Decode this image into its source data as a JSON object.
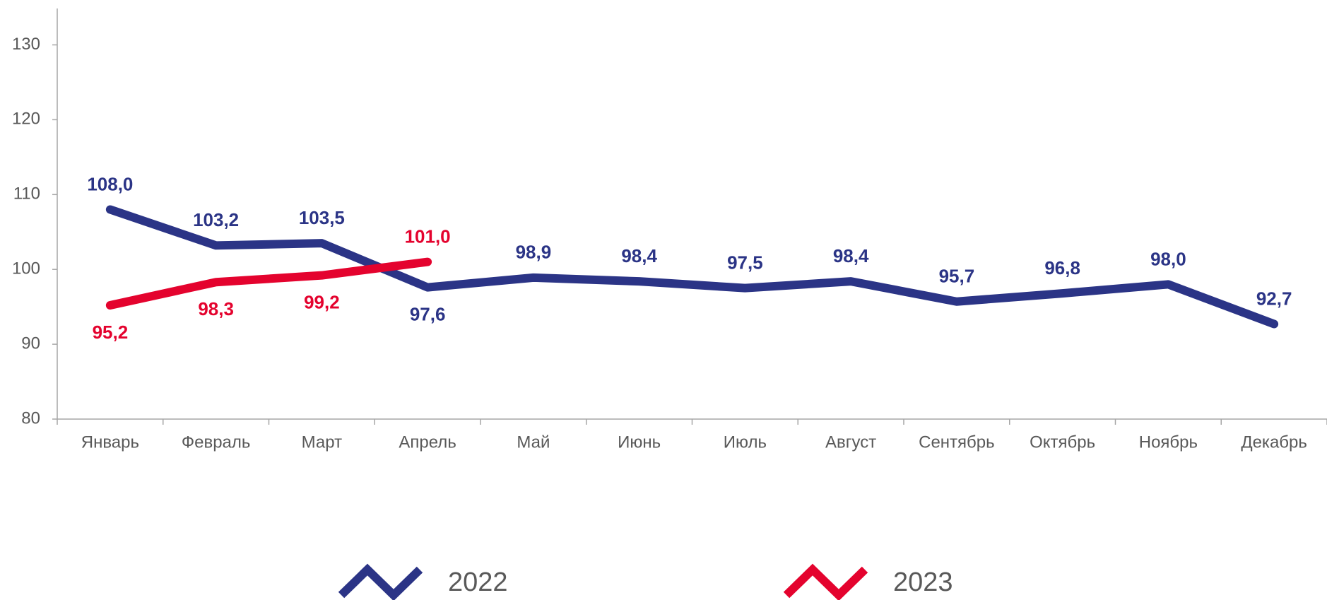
{
  "chart_data": {
    "type": "line",
    "categories": [
      "Январь",
      "Февраль",
      "Март",
      "Апрель",
      "Май",
      "Июнь",
      "Июль",
      "Август",
      "Сентябрь",
      "Октябрь",
      "Ноябрь",
      "Декабрь"
    ],
    "series": [
      {
        "name": "2022",
        "color": "#2b3486",
        "values": [
          108.0,
          103.2,
          103.5,
          97.6,
          98.9,
          98.4,
          97.5,
          98.4,
          95.7,
          96.8,
          98.0,
          92.7
        ],
        "value_labels": [
          "108,0",
          "103,2",
          "103,5",
          "97,6",
          "98,9",
          "98,4",
          "97,5",
          "98,4",
          "95,7",
          "96,8",
          "98,0",
          "92,7"
        ]
      },
      {
        "name": "2023",
        "color": "#e4032e",
        "values": [
          95.2,
          98.3,
          99.2,
          101.0,
          null,
          null,
          null,
          null,
          null,
          null,
          null,
          null
        ],
        "value_labels": [
          "95,2",
          "98,3",
          "99,2",
          "101,0",
          null,
          null,
          null,
          null,
          null,
          null,
          null,
          null
        ]
      }
    ],
    "ylim": [
      80,
      130
    ],
    "yticks": [
      80,
      90,
      100,
      110,
      120,
      130
    ],
    "grid": false,
    "legend": "bottom"
  }
}
